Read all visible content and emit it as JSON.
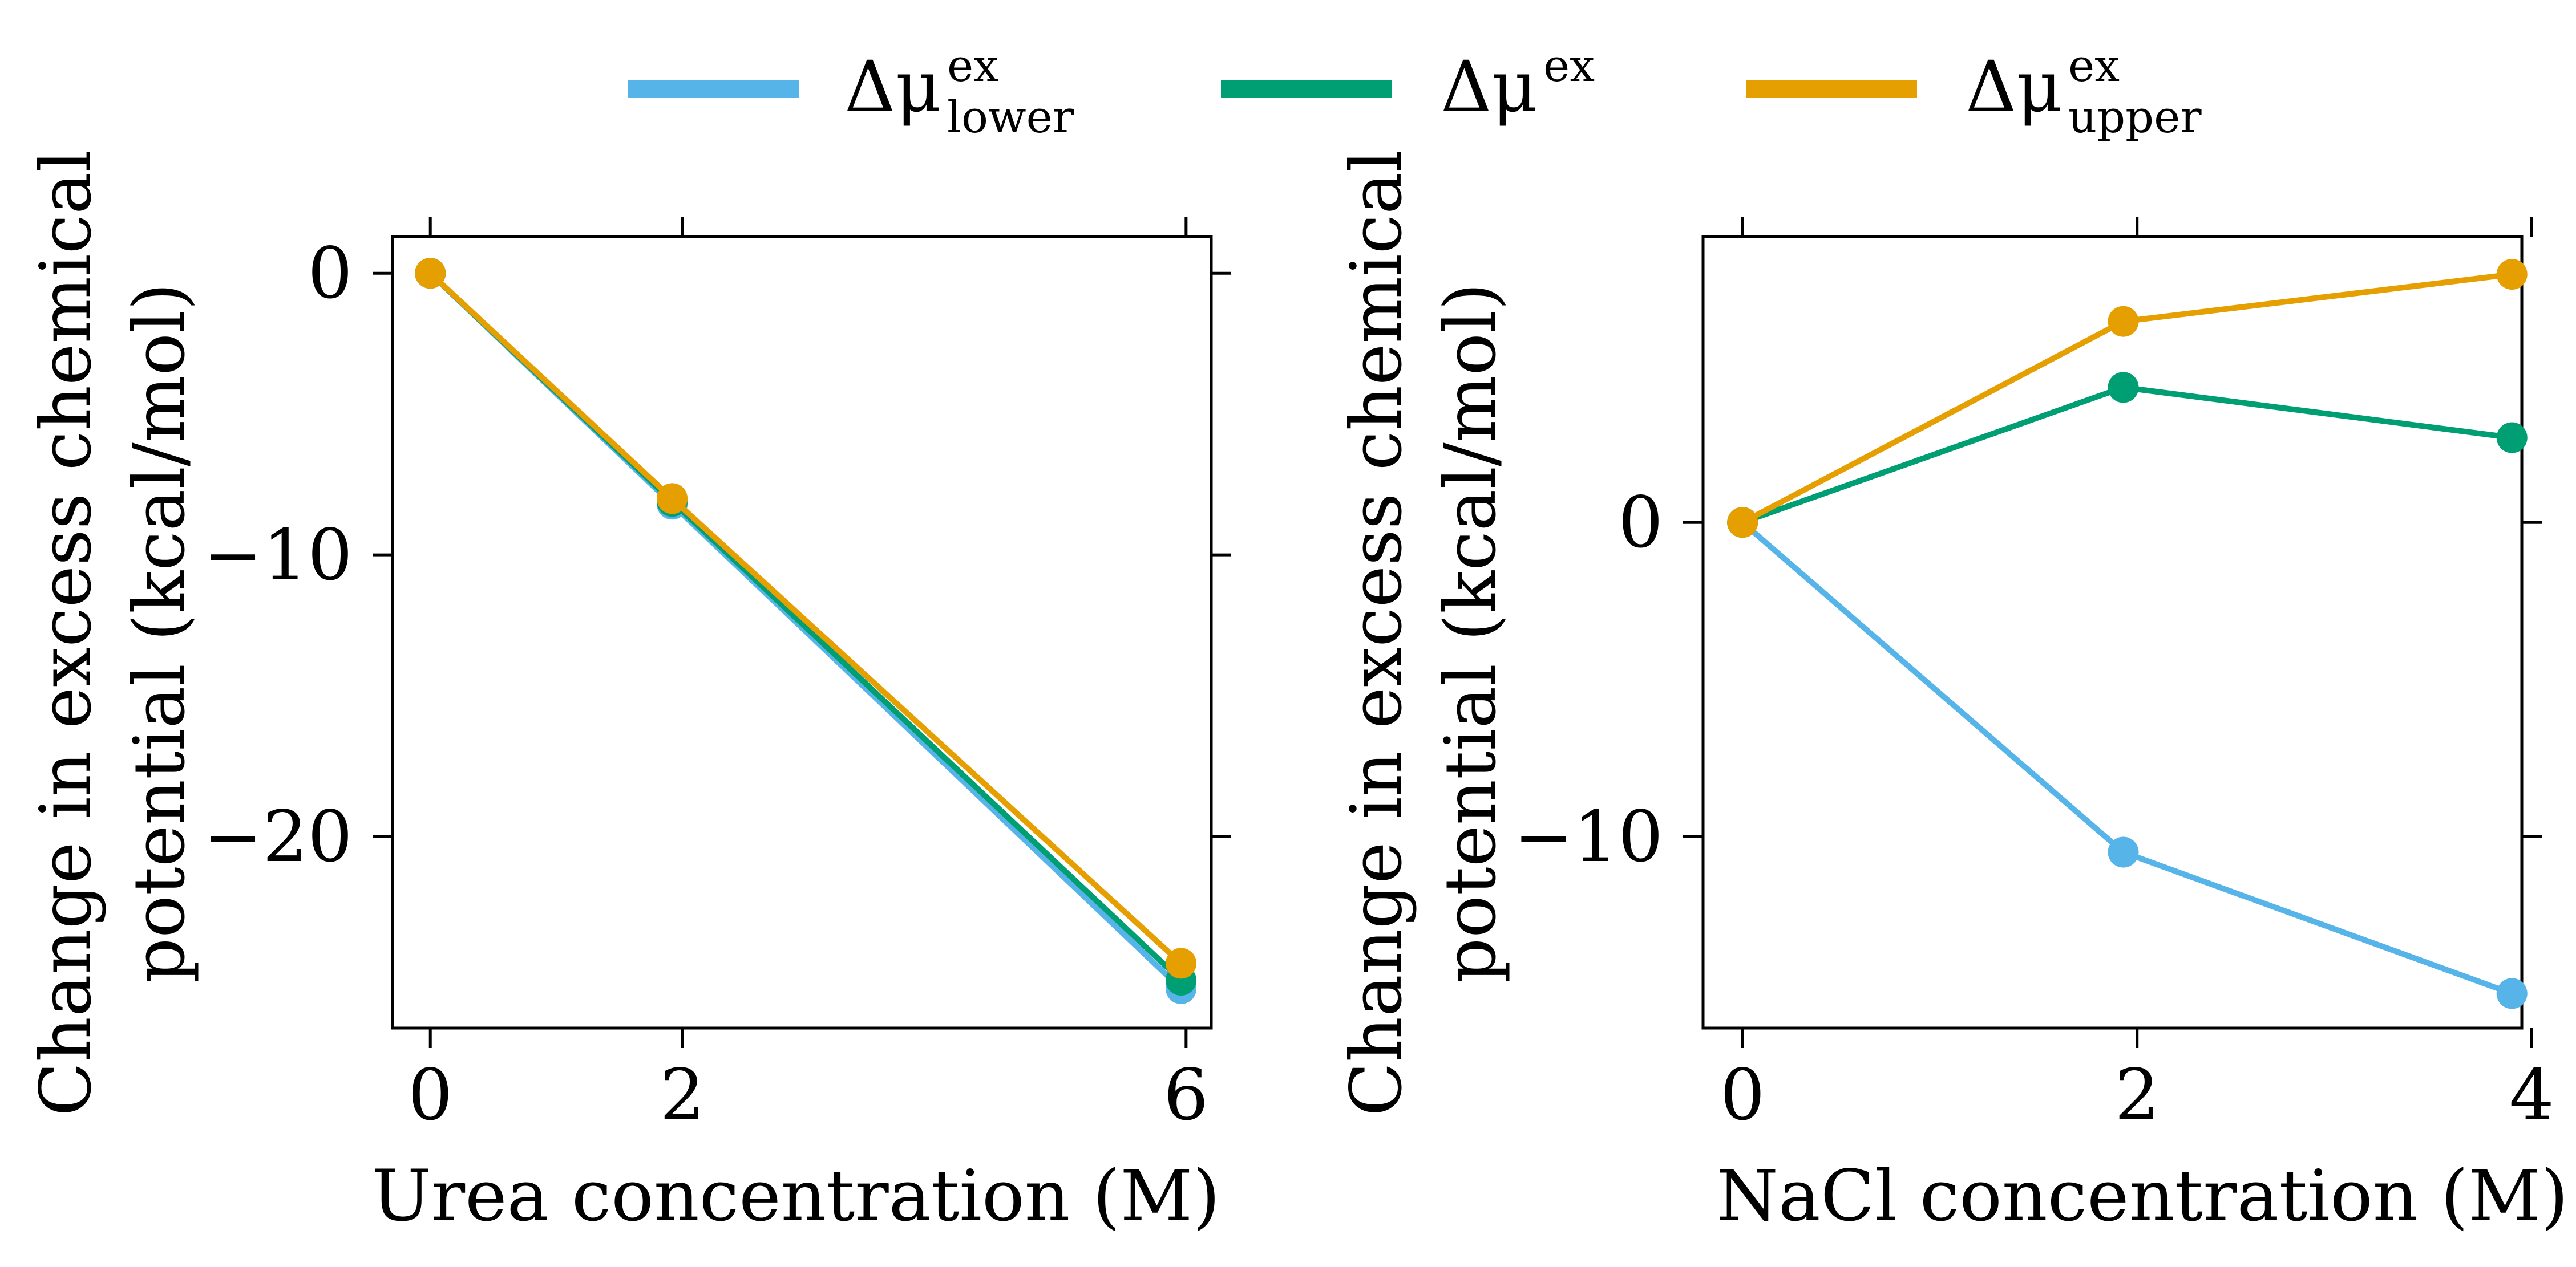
{
  "legend": {
    "placement": "top-center",
    "entries": [
      {
        "base": "Δμ",
        "sup": "ex",
        "sub": "lower",
        "color": "#56b4e9"
      },
      {
        "base": "Δμ",
        "sup": "ex",
        "sub": "",
        "color": "#009e73"
      },
      {
        "base": "Δμ",
        "sup": "ex",
        "sub": "upper",
        "color": "#e69f00"
      }
    ]
  },
  "chart_data": [
    {
      "type": "line",
      "xlabel": "Urea concentration (M)",
      "ylabel": [
        "Change in excess chemical",
        "potential (kcal/mol)"
      ],
      "x_ticks": [
        0,
        2,
        6
      ],
      "y_ticks": [
        0,
        -10,
        -20
      ],
      "xlim": [
        -0.3,
        6.2
      ],
      "ylim": [
        -26.8,
        1.3
      ],
      "x": [
        0,
        1.92,
        5.96
      ],
      "series": [
        {
          "name": "Δμ_lower^ex",
          "color": "#56b4e9",
          "values": [
            0,
            -8.2,
            -25.4
          ]
        },
        {
          "name": "Δμ^ex",
          "color": "#009e73",
          "values": [
            0,
            -8.1,
            -25.1
          ]
        },
        {
          "name": "Δμ_upper^ex",
          "color": "#e69f00",
          "values": [
            0,
            -8.0,
            -24.5
          ]
        }
      ]
    },
    {
      "type": "line",
      "xlabel": "NaCl concentration (M)",
      "ylabel": [
        "Change in excess chemical",
        "potential (kcal/mol)"
      ],
      "x_ticks": [
        0,
        2,
        4
      ],
      "y_ticks": [
        0,
        -10
      ],
      "xlim": [
        -0.2,
        3.95
      ],
      "ylim": [
        -16.1,
        9.1
      ],
      "x": [
        0,
        1.93,
        3.9
      ],
      "series": [
        {
          "name": "Δμ_lower^ex",
          "color": "#56b4e9",
          "values": [
            0,
            -10.5,
            -15.0
          ]
        },
        {
          "name": "Δμ^ex",
          "color": "#009e73",
          "values": [
            0,
            4.3,
            2.7
          ]
        },
        {
          "name": "Δμ_upper^ex",
          "color": "#e69f00",
          "values": [
            0,
            6.4,
            7.9
          ]
        }
      ]
    }
  ]
}
